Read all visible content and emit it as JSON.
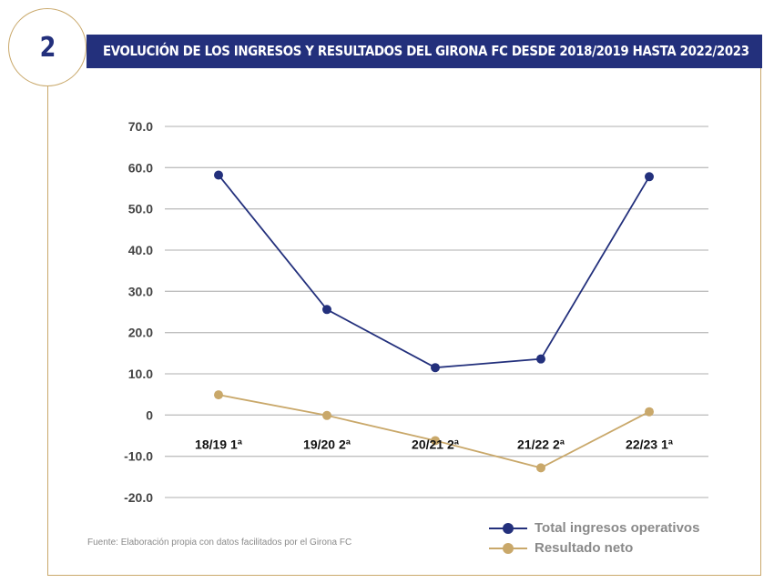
{
  "figure": {
    "number": "2",
    "title": "EVOLUCIÓN DE LOS INGRESOS Y RESULTADOS DEL GIRONA FC DESDE 2018/2019 HASTA 2022/2023",
    "source": "Fuente: Elaboración propia con datos facilitados por el Girona FC"
  },
  "colors": {
    "navy": "#23307c",
    "gold": "#c9a86a",
    "grid": "#bfbfbf"
  },
  "chart_data": {
    "type": "line",
    "categories": [
      "18/19 1ª",
      "19/20 2ª",
      "20/21 2ª",
      "21/22 2ª",
      "22/23 1ª"
    ],
    "series": [
      {
        "name": "Total ingresos operativos",
        "color": "#23307c",
        "values": [
          58.2,
          25.6,
          11.5,
          13.6,
          57.8
        ]
      },
      {
        "name": "Resultado neto",
        "color": "#c9a86a",
        "values": [
          4.9,
          -0.1,
          -6.2,
          -12.8,
          0.8
        ]
      }
    ],
    "y_ticks": [
      "70.0",
      "60.0",
      "50.0",
      "40.0",
      "30.0",
      "20.0",
      "10.0",
      "0",
      "-10.0",
      "-20.0"
    ],
    "ylim": [
      -20,
      70
    ],
    "grid": true,
    "legend_position": "bottom-right"
  }
}
